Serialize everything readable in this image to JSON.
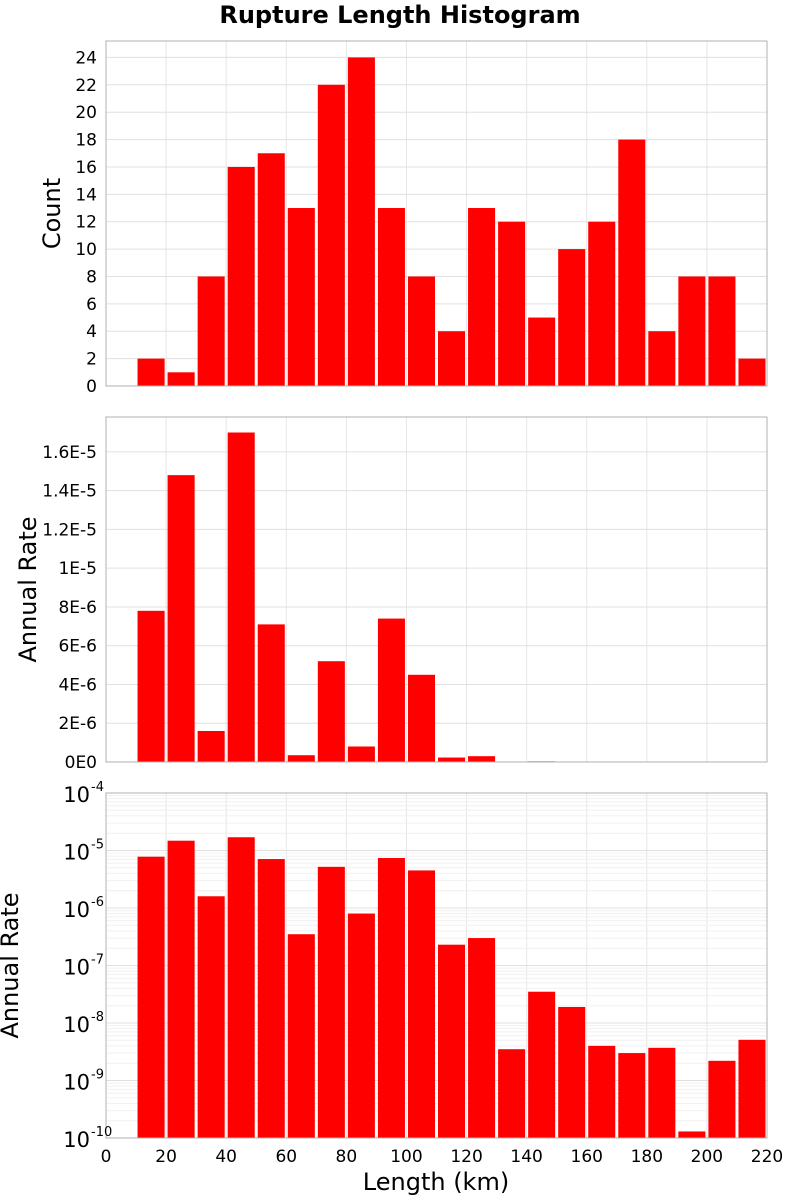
{
  "chart_data": {
    "title": "Rupture Length Histogram",
    "xlabel": "Length (km)",
    "xlim": [
      0,
      220
    ],
    "x_ticks": [
      "0",
      "20",
      "40",
      "60",
      "80",
      "100",
      "120",
      "140",
      "160",
      "180",
      "200",
      "220"
    ],
    "bin_width": 10,
    "bar_color": "#ff0000",
    "grid": true,
    "panels": [
      {
        "type": "bar",
        "ylabel": "Count",
        "scale": "linear",
        "ylim": [
          0,
          25.2
        ],
        "y_ticks": [
          {
            "v": 0,
            "label": "0"
          },
          {
            "v": 2,
            "label": "2"
          },
          {
            "v": 4,
            "label": "4"
          },
          {
            "v": 6,
            "label": "6"
          },
          {
            "v": 8,
            "label": "8"
          },
          {
            "v": 10,
            "label": "10"
          },
          {
            "v": 12,
            "label": "12"
          },
          {
            "v": 14,
            "label": "14"
          },
          {
            "v": 16,
            "label": "16"
          },
          {
            "v": 18,
            "label": "18"
          },
          {
            "v": 20,
            "label": "20"
          },
          {
            "v": 22,
            "label": "22"
          },
          {
            "v": 24,
            "label": "24"
          }
        ],
        "x": [
          15,
          25,
          35,
          45,
          55,
          65,
          75,
          85,
          95,
          105,
          115,
          125,
          135,
          145,
          155,
          165,
          175,
          185,
          195,
          205,
          215
        ],
        "values": [
          2,
          1,
          8,
          16,
          17,
          13,
          22,
          24,
          13,
          8,
          4,
          13,
          12,
          5,
          10,
          12,
          18,
          4,
          8,
          8,
          2
        ]
      },
      {
        "type": "bar",
        "ylabel": "Annual Rate",
        "scale": "linear",
        "ylim": [
          0,
          1.78e-05
        ],
        "y_ticks": [
          {
            "v": 0,
            "label": "0E0"
          },
          {
            "v": 2e-06,
            "label": "2E-6"
          },
          {
            "v": 4e-06,
            "label": "4E-6"
          },
          {
            "v": 6e-06,
            "label": "6E-6"
          },
          {
            "v": 8e-06,
            "label": "8E-6"
          },
          {
            "v": 1e-05,
            "label": "1E-5"
          },
          {
            "v": 1.2e-05,
            "label": "1.2E-5"
          },
          {
            "v": 1.4e-05,
            "label": "1.4E-5"
          },
          {
            "v": 1.6e-05,
            "label": "1.6E-5"
          }
        ],
        "x": [
          15,
          25,
          35,
          45,
          55,
          65,
          75,
          85,
          95,
          105,
          115,
          125,
          135,
          145,
          155,
          165,
          175,
          185,
          195,
          205,
          215
        ],
        "values": [
          7.8e-06,
          1.48e-05,
          1.6e-06,
          1.7e-05,
          7.1e-06,
          3.5e-07,
          5.2e-06,
          8e-07,
          7.4e-06,
          4.5e-06,
          2.3e-07,
          3e-07,
          3.5e-09,
          3.5e-08,
          1.9e-08,
          4e-09,
          3e-09,
          3.7e-09,
          1.3e-10,
          2.2e-09,
          5.1e-09
        ]
      },
      {
        "type": "bar",
        "ylabel": "Annual Rate",
        "scale": "log",
        "ylim": [
          1e-10,
          0.0001
        ],
        "y_ticks": [
          {
            "v": 1e-10,
            "base": "10",
            "exp": "-10"
          },
          {
            "v": 1e-09,
            "base": "10",
            "exp": "-9"
          },
          {
            "v": 1e-08,
            "base": "10",
            "exp": "-8"
          },
          {
            "v": 1e-07,
            "base": "10",
            "exp": "-7"
          },
          {
            "v": 1e-06,
            "base": "10",
            "exp": "-6"
          },
          {
            "v": 1e-05,
            "base": "10",
            "exp": "-5"
          },
          {
            "v": 0.0001,
            "base": "10",
            "exp": "-4"
          }
        ],
        "x": [
          15,
          25,
          35,
          45,
          55,
          65,
          75,
          85,
          95,
          105,
          115,
          125,
          135,
          145,
          155,
          165,
          175,
          185,
          195,
          205,
          215
        ],
        "values": [
          7.8e-06,
          1.48e-05,
          1.6e-06,
          1.7e-05,
          7.1e-06,
          3.5e-07,
          5.2e-06,
          8e-07,
          7.4e-06,
          4.5e-06,
          2.3e-07,
          3e-07,
          3.5e-09,
          3.5e-08,
          1.9e-08,
          4e-09,
          3e-09,
          3.7e-09,
          1.3e-10,
          2.2e-09,
          5.1e-09
        ]
      }
    ]
  }
}
